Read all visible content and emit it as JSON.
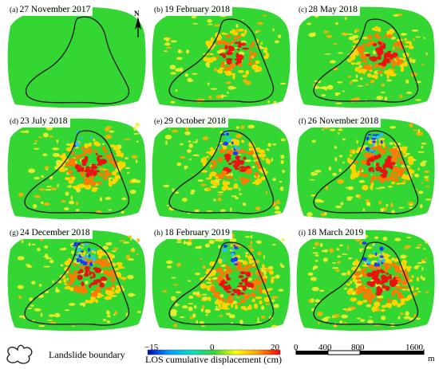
{
  "panels": [
    {
      "letter": "(a)",
      "date": "27 November 2017"
    },
    {
      "letter": "(b)",
      "date": "19 February 2018"
    },
    {
      "letter": "(c)",
      "date": "28 May 2018"
    },
    {
      "letter": "(d)",
      "date": "23 July 2018"
    },
    {
      "letter": "(e)",
      "date": "29 October 2018"
    },
    {
      "letter": "(f)",
      "date": "26 November 2018"
    },
    {
      "letter": "(g)",
      "date": "24 December 2018"
    },
    {
      "letter": "(h)",
      "date": "18 February 2019"
    },
    {
      "letter": "(i)",
      "date": "18 March 2019"
    }
  ],
  "north_label": "N",
  "legend": {
    "boundary_label": "Landslide boundary",
    "colorbar": {
      "min_label": "−15",
      "mid_label": "0",
      "max_label": "20",
      "title": "LOS cumulative displacement (cm)",
      "min": -15,
      "max": 20,
      "colors": [
        "#0000c8",
        "#00a0ff",
        "#00e0c0",
        "#35d435",
        "#ffff00",
        "#ff9900",
        "#ff0000"
      ]
    },
    "scalebar": {
      "ticks": [
        "0",
        "400",
        "800",
        "1600"
      ],
      "unit": "m"
    }
  },
  "colors": {
    "background_green": "#33d633",
    "boundary_line": "#222222"
  }
}
